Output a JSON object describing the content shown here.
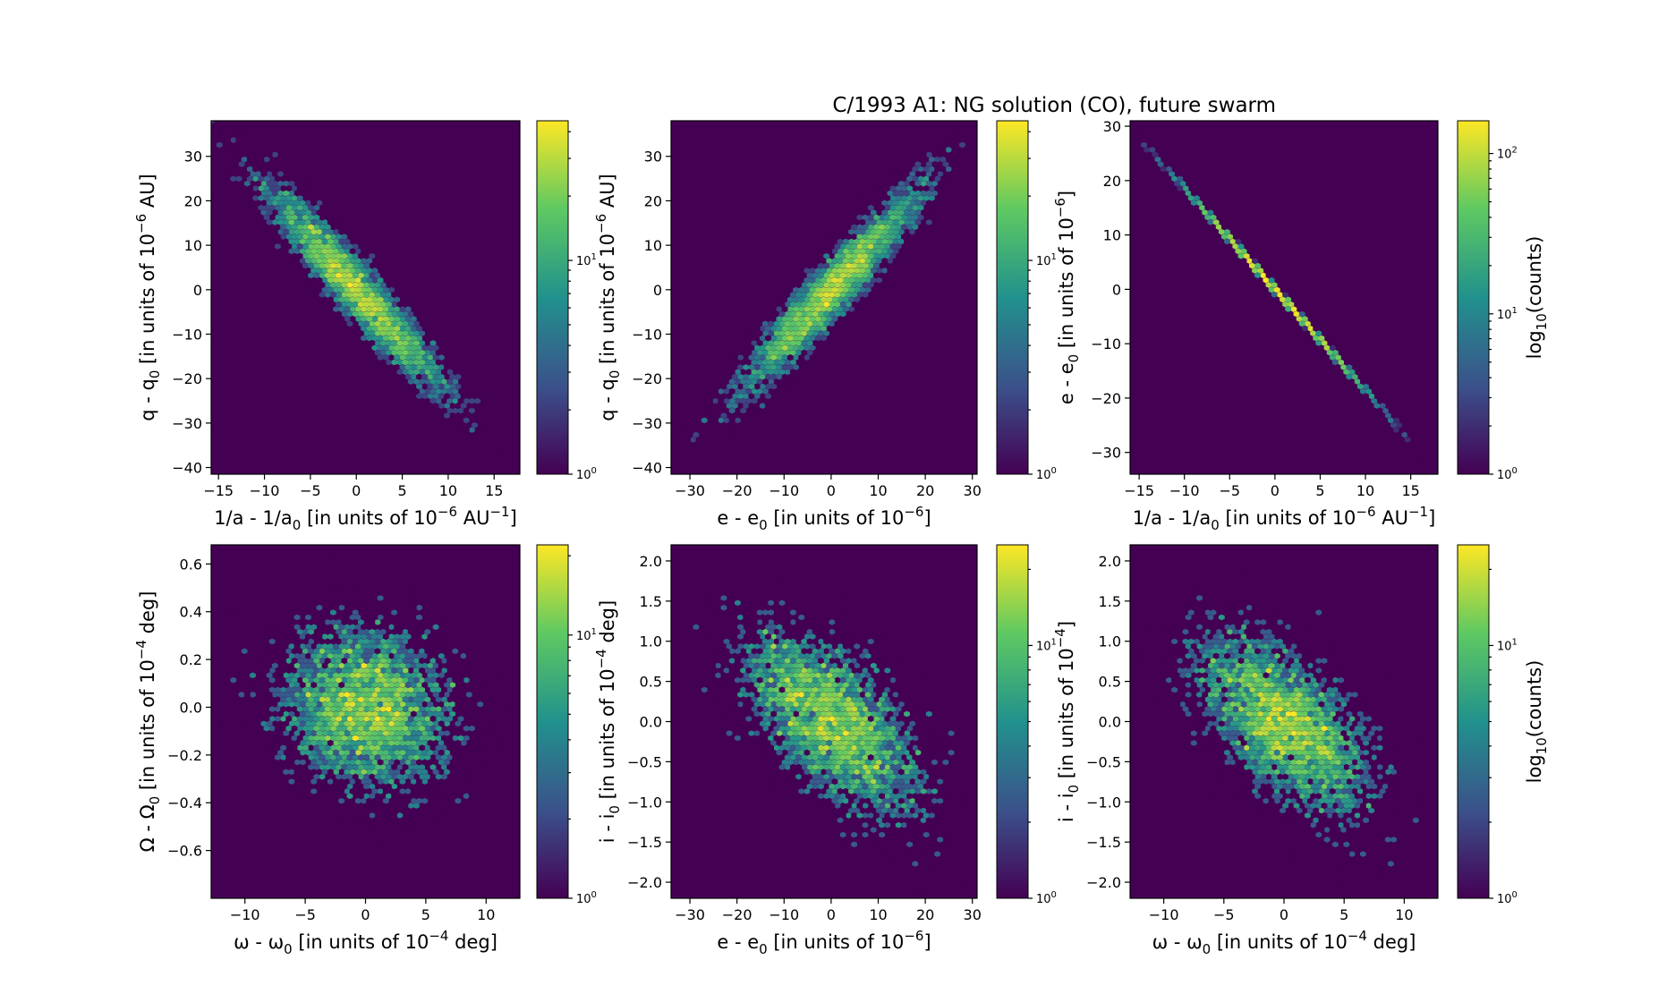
{
  "figure": {
    "title": "C/1993 A1:  NG solution (CO), future swarm",
    "background": "#ffffff",
    "colormap": [
      "#440154",
      "#3b528b",
      "#21918c",
      "#5ec962",
      "#fde725"
    ]
  },
  "chart_data": [
    {
      "type": "heatmap",
      "subtype": "hexbin",
      "xlabel": "1/a - 1/a0 [in units of 10-6 AU-1]",
      "ylabel": "q - q0 [in units of 10-6 AU]",
      "xlabel_parts": {
        "main": "1/a - 1/a",
        "sub": "0",
        "mid": " [in units of 10",
        "sup": "−6",
        "mid2": " AU",
        "sup2": "−1",
        "end": "]"
      },
      "ylabel_parts": {
        "main": "q - q",
        "sub": "0",
        "mid": " [in units of 10",
        "sup": "−6",
        "end": " AU]"
      },
      "xlim": [
        -15.8,
        17.8
      ],
      "ylim": [
        -41.5,
        38
      ],
      "xticks": [
        -15,
        -10,
        -5,
        0,
        5,
        10,
        15
      ],
      "xtick_labels": [
        "−15",
        "−10",
        "−5",
        "0",
        "5",
        "10",
        "15"
      ],
      "yticks": [
        -40,
        -30,
        -20,
        -10,
        0,
        10,
        20,
        30
      ],
      "ytick_labels": [
        "−40",
        "−30",
        "−20",
        "−10",
        "0",
        "10",
        "20",
        "30"
      ],
      "distribution": {
        "x_sd": 5.0,
        "y_sd": 12.0,
        "correlation": -0.95,
        "counts_max": 45
      },
      "colorbar": {
        "scale": "log",
        "vmax": 45,
        "ticks": [
          1,
          10
        ],
        "tick_labels": [
          "10^0",
          "10^1"
        ],
        "label": ""
      }
    },
    {
      "type": "heatmap",
      "subtype": "hexbin",
      "xlabel": "e - e0 [in units of 10-6]",
      "ylabel": "q - q0 [in units of 10-6 AU]",
      "xlabel_parts": {
        "main": "e - e",
        "sub": "0",
        "mid": " [in units of 10",
        "sup": "−6",
        "end": "]"
      },
      "ylabel_parts": {
        "main": "q - q",
        "sub": "0",
        "mid": " [in units of 10",
        "sup": "−6",
        "end": " AU]"
      },
      "xlim": [
        -34,
        31
      ],
      "ylim": [
        -41.5,
        38
      ],
      "xticks": [
        -30,
        -20,
        -10,
        0,
        10,
        20,
        30
      ],
      "xtick_labels": [
        "−30",
        "−20",
        "−10",
        "0",
        "10",
        "20",
        "30"
      ],
      "yticks": [
        -40,
        -30,
        -20,
        -10,
        0,
        10,
        20,
        30
      ],
      "ytick_labels": [
        "−40",
        "−30",
        "−20",
        "−10",
        "0",
        "10",
        "20",
        "30"
      ],
      "distribution": {
        "x_sd": 10.0,
        "y_sd": 12.0,
        "correlation": 0.95,
        "counts_max": 45
      },
      "colorbar": {
        "scale": "log",
        "vmax": 45,
        "ticks": [
          1,
          10
        ],
        "tick_labels": [
          "10^0",
          "10^1"
        ],
        "label": ""
      }
    },
    {
      "type": "heatmap",
      "subtype": "hexbin",
      "xlabel": "1/a - 1/a0 [in units of 10-6 AU-1]",
      "ylabel": "e - e0 [in units of 10-6]",
      "xlabel_parts": {
        "main": "1/a - 1/a",
        "sub": "0",
        "mid": " [in units of 10",
        "sup": "−6",
        "mid2": " AU",
        "sup2": "−1",
        "end": "]"
      },
      "ylabel_parts": {
        "main": "e - e",
        "sub": "0",
        "mid": " [in units of 10",
        "sup": "−6",
        "end": "]"
      },
      "xlim": [
        -16,
        18
      ],
      "ylim": [
        -34,
        31
      ],
      "xticks": [
        -15,
        -10,
        -5,
        0,
        5,
        10,
        15
      ],
      "xtick_labels": [
        "−15",
        "−10",
        "−5",
        "0",
        "5",
        "10",
        "15"
      ],
      "yticks": [
        -30,
        -20,
        -10,
        0,
        10,
        20,
        30
      ],
      "ytick_labels": [
        "−30",
        "−20",
        "−10",
        "0",
        "10",
        "20",
        "30"
      ],
      "distribution": {
        "x_sd": 5.0,
        "y_sd": 9.3,
        "correlation": -0.9999,
        "counts_max": 160
      },
      "colorbar": {
        "scale": "log",
        "vmax": 160,
        "ticks": [
          1,
          10,
          100
        ],
        "tick_labels": [
          "10^0",
          "10^1",
          "10^2"
        ],
        "label": "log10(counts)"
      }
    },
    {
      "type": "heatmap",
      "subtype": "hexbin",
      "xlabel": "ω - ω0 [in units of 10-4 deg]",
      "ylabel": "Ω - Ω0 [in units of 10-4 deg]",
      "xlabel_parts": {
        "main": "ω - ω",
        "sub": "0",
        "mid": " [in units of 10",
        "sup": "−4",
        "end": " deg]"
      },
      "ylabel_parts": {
        "main": "Ω - Ω",
        "sub": "0",
        "mid": " [in units of 10",
        "sup": "−4",
        "end": " deg]"
      },
      "xlim": [
        -12.8,
        12.8
      ],
      "ylim": [
        -0.8,
        0.68
      ],
      "xticks": [
        -10,
        -5,
        0,
        5,
        10
      ],
      "xtick_labels": [
        "−10",
        "−5",
        "0",
        "5",
        "10"
      ],
      "yticks": [
        -0.6,
        -0.4,
        -0.2,
        0.0,
        0.2,
        0.4,
        0.6
      ],
      "ytick_labels": [
        "−0.6",
        "−0.4",
        "−0.2",
        "0.0",
        "0.2",
        "0.4",
        "0.6"
      ],
      "distribution": {
        "x_sd": 3.8,
        "y_sd": 0.18,
        "correlation": -0.1,
        "counts_max": 22
      },
      "colorbar": {
        "scale": "log",
        "vmax": 22,
        "ticks": [
          1,
          10
        ],
        "tick_labels": [
          "10^0",
          "10^1"
        ],
        "label": ""
      }
    },
    {
      "type": "heatmap",
      "subtype": "hexbin",
      "xlabel": "e - e0 [in units of 10-6]",
      "ylabel": "i - i0 [in units of 10-4 deg]",
      "xlabel_parts": {
        "main": "e - e",
        "sub": "0",
        "mid": " [in units of 10",
        "sup": "−6",
        "end": "]"
      },
      "ylabel_parts": {
        "main": "i - i",
        "sub": "0",
        "mid": " [in units of 10",
        "sup": "−4",
        "end": " deg]"
      },
      "xlim": [
        -34,
        31
      ],
      "ylim": [
        -2.2,
        2.2
      ],
      "xticks": [
        -30,
        -20,
        -10,
        0,
        10,
        20,
        30
      ],
      "xtick_labels": [
        "−30",
        "−20",
        "−10",
        "0",
        "10",
        "20",
        "30"
      ],
      "yticks": [
        -2.0,
        -1.5,
        -1.0,
        -0.5,
        0.0,
        0.5,
        1.0,
        1.5,
        2.0
      ],
      "ytick_labels": [
        "−2.0",
        "−1.5",
        "−1.0",
        "−0.5",
        "0.0",
        "0.5",
        "1.0",
        "1.5",
        "2.0"
      ],
      "distribution": {
        "x_sd": 10.0,
        "y_sd": 0.6,
        "correlation": -0.6,
        "counts_max": 25
      },
      "colorbar": {
        "scale": "log",
        "vmax": 25,
        "ticks": [
          1,
          10
        ],
        "tick_labels": [
          "10^0",
          "10^1"
        ],
        "label": ""
      }
    },
    {
      "type": "heatmap",
      "subtype": "hexbin",
      "xlabel": "ω - ω0 [in units of 10-4 deg]",
      "ylabel": "i - i0 [in units of 10-4]",
      "xlabel_parts": {
        "main": "ω - ω",
        "sub": "0",
        "mid": " [in units of 10",
        "sup": "−4",
        "end": " deg]"
      },
      "ylabel_parts": {
        "main": "i - i",
        "sub": "0",
        "mid": " [in units of 10",
        "sup": "−4",
        "end": "]"
      },
      "xlim": [
        -12.8,
        12.8
      ],
      "ylim": [
        -2.2,
        2.2
      ],
      "xticks": [
        -10,
        -5,
        0,
        5,
        10
      ],
      "xtick_labels": [
        "−10",
        "−5",
        "0",
        "5",
        "10"
      ],
      "yticks": [
        -2.0,
        -1.5,
        -1.0,
        -0.5,
        0.0,
        0.5,
        1.0,
        1.5,
        2.0
      ],
      "ytick_labels": [
        "−2.0",
        "−1.5",
        "−1.0",
        "−0.5",
        "0.0",
        "0.5",
        "1.0",
        "1.5",
        "2.0"
      ],
      "distribution": {
        "x_sd": 3.8,
        "y_sd": 0.6,
        "correlation": -0.6,
        "counts_max": 25
      },
      "colorbar": {
        "scale": "log",
        "vmax": 25,
        "ticks": [
          1,
          10
        ],
        "tick_labels": [
          "10^0",
          "10^1"
        ],
        "label": "log10(counts)"
      }
    }
  ]
}
